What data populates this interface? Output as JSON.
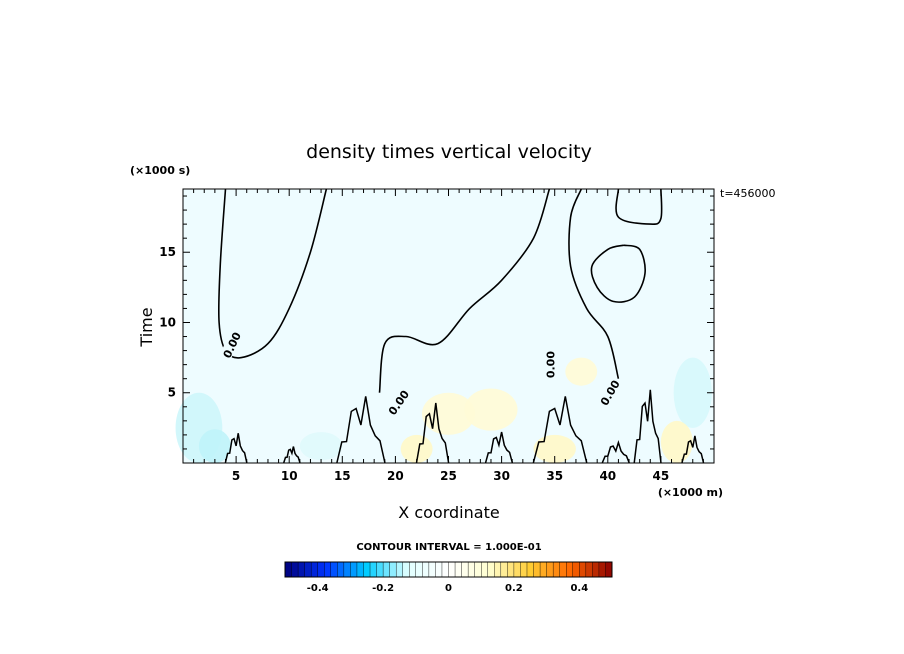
{
  "chart_data": {
    "type": "heatmap",
    "title": "density times vertical velocity",
    "xlabel": "X coordinate",
    "ylabel": "Time",
    "x_unit": "(×1000 m)",
    "y_unit": "(×1000 s)",
    "annotation": "t=456000",
    "xlim": [
      0,
      50
    ],
    "ylim": [
      0,
      19.5
    ],
    "x_ticks": [
      5,
      10,
      15,
      20,
      25,
      30,
      35,
      40,
      45
    ],
    "y_ticks": [
      5,
      10,
      15
    ],
    "x_tick_labels": [
      "5",
      "10",
      "15",
      "20",
      "25",
      "30",
      "35",
      "40",
      "45"
    ],
    "y_tick_labels": [
      "5",
      "10",
      "15"
    ],
    "contour_interval_text": "CONTOUR INTERVAL = 1.000E-01",
    "contour_labels": [
      "0.00",
      "0.00",
      "0.00",
      "0.00"
    ],
    "colorbar": {
      "range": [
        -0.5,
        0.5
      ],
      "ticks": [
        -0.4,
        -0.2,
        0,
        0.2,
        0.4
      ],
      "tick_labels": [
        "-0.4",
        "-0.2",
        "0",
        "0.2",
        "0.4"
      ],
      "colors": [
        "#00007a",
        "#0033ff",
        "#00ccff",
        "#e0ffff",
        "#ffffff",
        "#ffffd0",
        "#ffcc33",
        "#ff6600",
        "#8b0000"
      ]
    },
    "field_background": "#eefcff",
    "contours_zero_level": [
      {
        "name": "upper-left",
        "points": [
          [
            4,
            19.5
          ],
          [
            3.5,
            14
          ],
          [
            3.4,
            10
          ],
          [
            4,
            8
          ],
          [
            5.5,
            7.5
          ],
          [
            8,
            8.5
          ],
          [
            10,
            11
          ],
          [
            12,
            15
          ],
          [
            13.5,
            19.5
          ]
        ]
      },
      {
        "name": "center-ridge",
        "points": [
          [
            34.5,
            19.5
          ],
          [
            33,
            16
          ],
          [
            30,
            13
          ],
          [
            27,
            11
          ],
          [
            24,
            8.5
          ],
          [
            21,
            9
          ],
          [
            19,
            8.5
          ],
          [
            18.5,
            5
          ]
        ]
      },
      {
        "name": "right-loop",
        "points": [
          [
            41.5,
            15.5
          ],
          [
            43,
            15.2
          ],
          [
            43.5,
            13.5
          ],
          [
            42.5,
            11.8
          ],
          [
            40.5,
            11.5
          ],
          [
            39,
            12.5
          ],
          [
            38.5,
            14
          ],
          [
            40,
            15.2
          ],
          [
            41.5,
            15.5
          ]
        ]
      },
      {
        "name": "right-drop",
        "points": [
          [
            37.5,
            19.5
          ],
          [
            36.5,
            17.5
          ],
          [
            36.5,
            14
          ],
          [
            38,
            11
          ],
          [
            40,
            9
          ],
          [
            41,
            6
          ]
        ]
      },
      {
        "name": "top-right",
        "points": [
          [
            41,
            19.5
          ],
          [
            41,
            17.5
          ],
          [
            44,
            17
          ],
          [
            45,
            17.4
          ],
          [
            45,
            19.5
          ]
        ]
      }
    ]
  }
}
